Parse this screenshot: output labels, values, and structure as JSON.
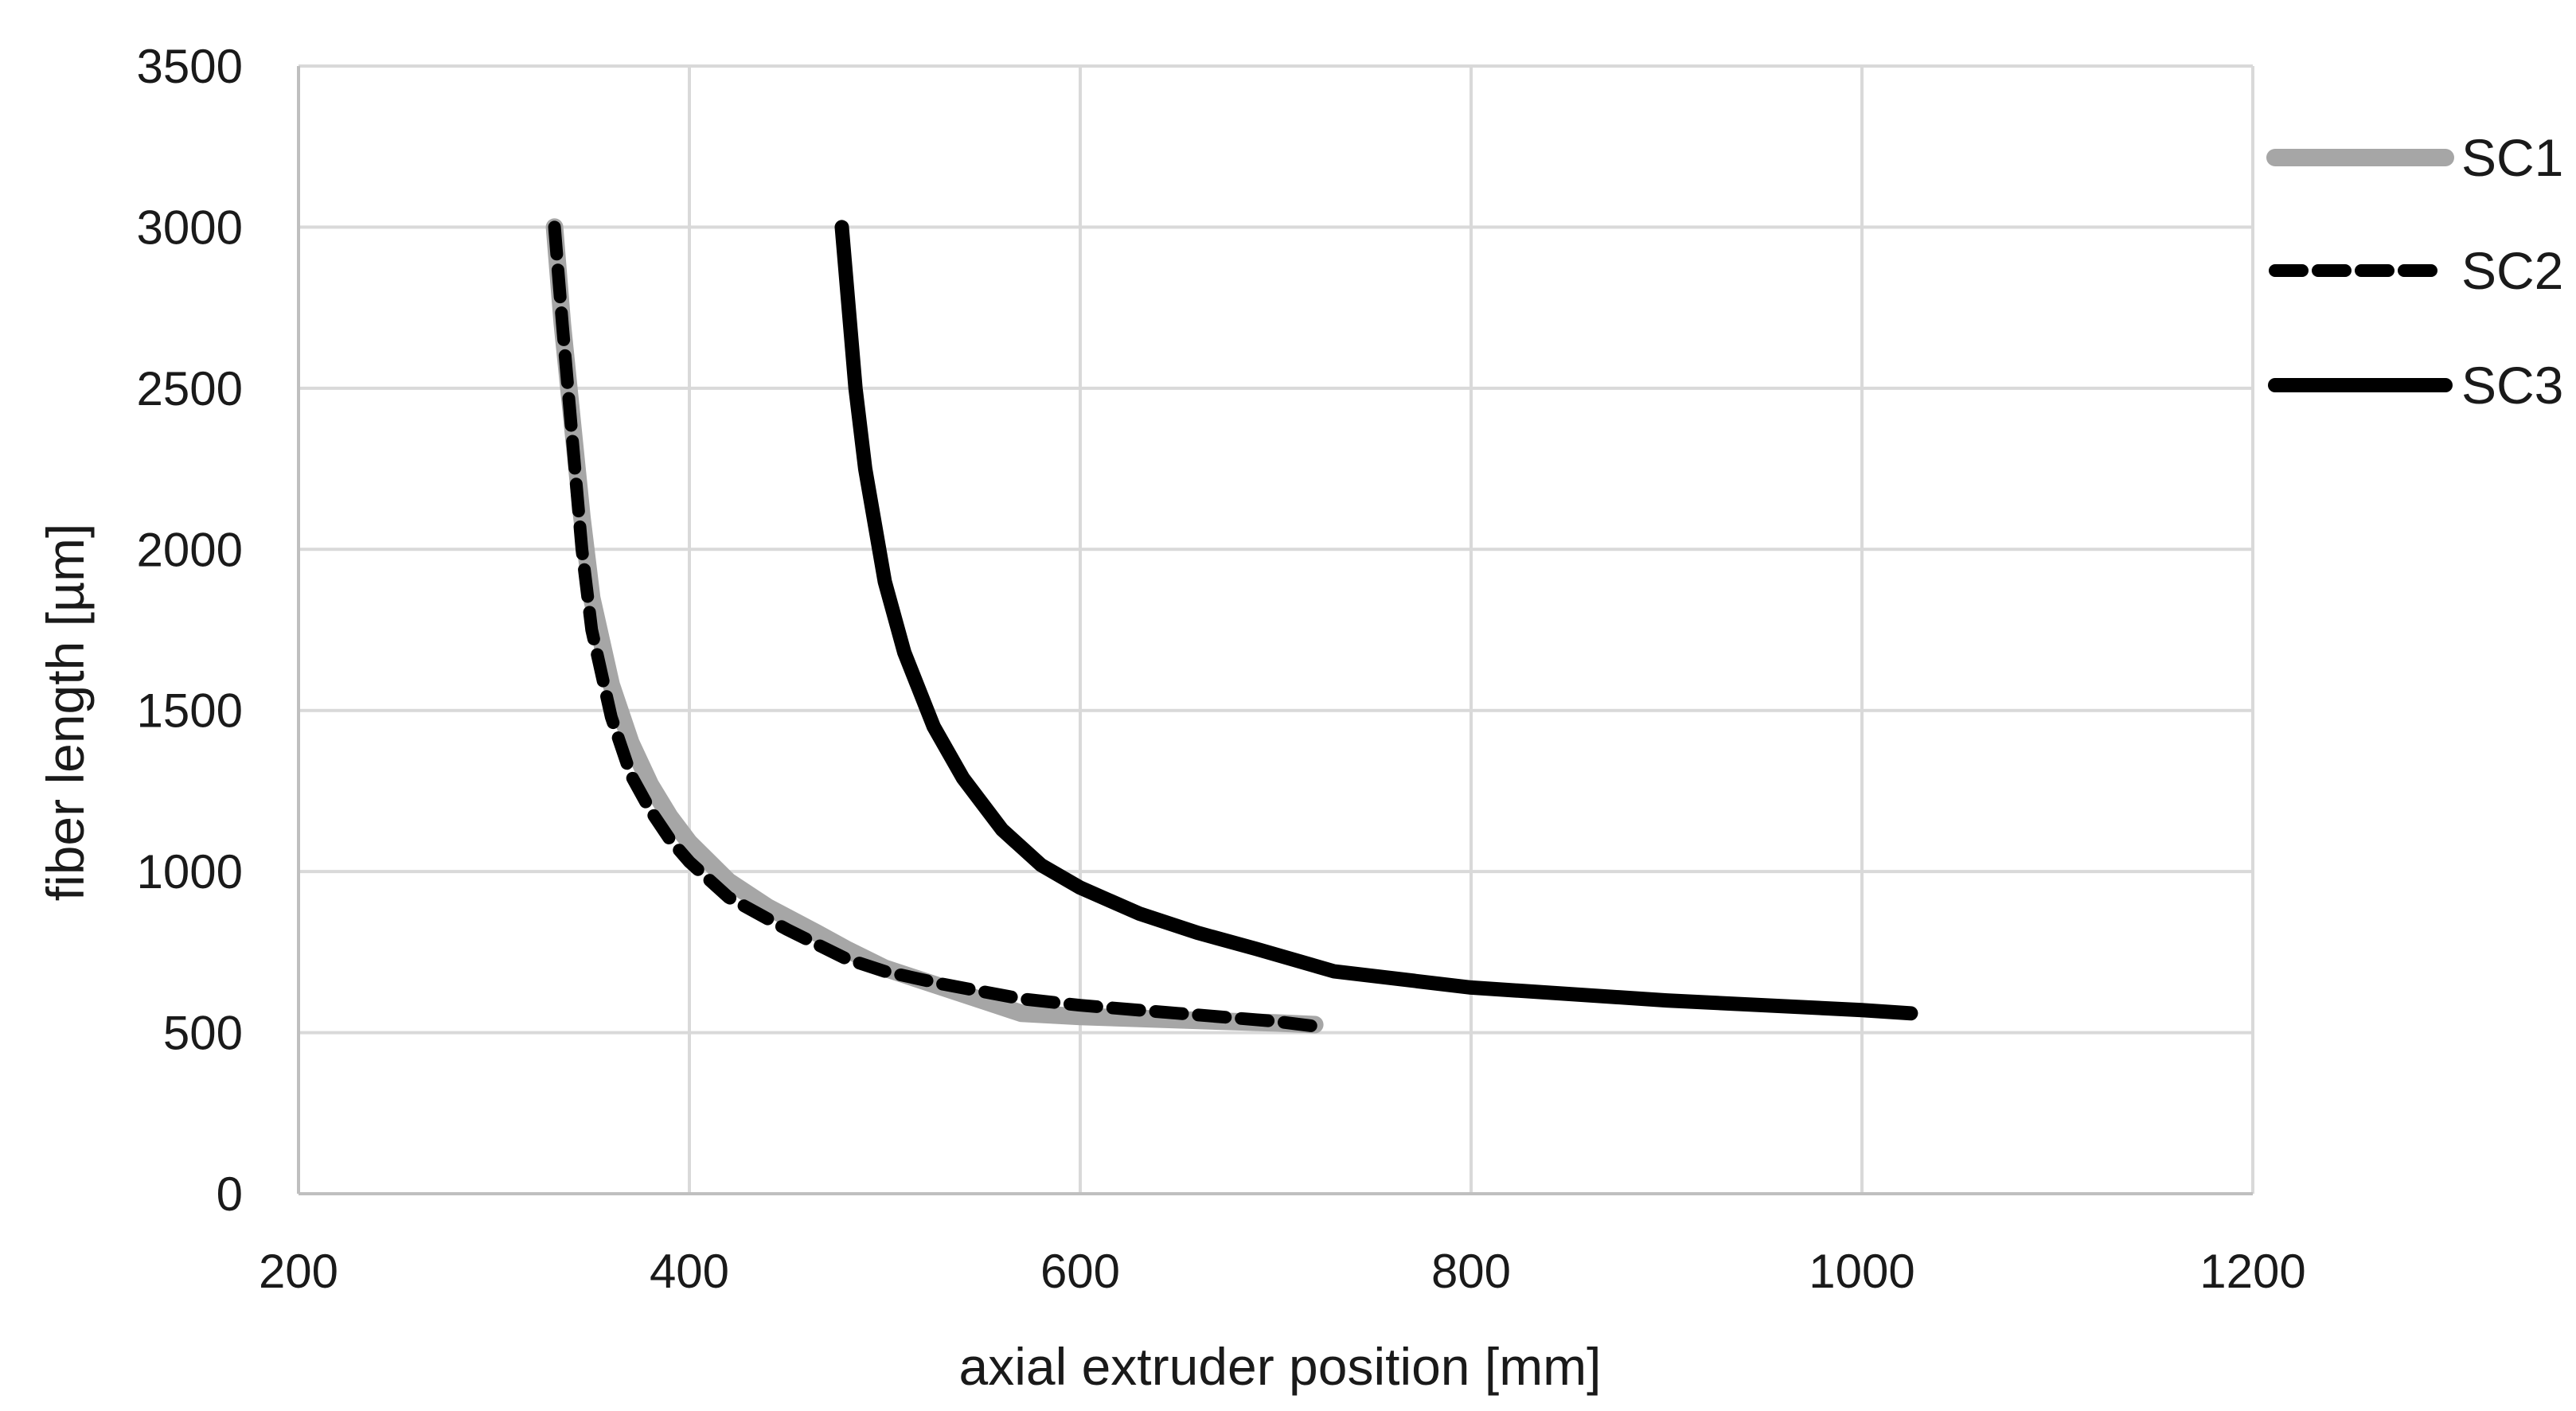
{
  "chart_data": {
    "type": "line",
    "xlabel": "axial extruder position [mm]",
    "ylabel": "fiber length [µm]",
    "xlim": [
      200,
      1200
    ],
    "ylim": [
      0,
      3500
    ],
    "x_ticks": [
      200,
      400,
      600,
      800,
      1000,
      1200
    ],
    "y_ticks": [
      0,
      500,
      1000,
      1500,
      2000,
      2500,
      3000,
      3500
    ],
    "grid": true,
    "legend_position": "right",
    "series": [
      {
        "name": "SC1",
        "color": "#a6a6a6",
        "style": "solid",
        "x": [
          331,
          335,
          340,
          345,
          350,
          360,
          370,
          380,
          390,
          400,
          420,
          440,
          465,
          480,
          500,
          530,
          570,
          600,
          650,
          700,
          720
        ],
        "y": [
          3000,
          2700,
          2400,
          2100,
          1850,
          1580,
          1400,
          1270,
          1170,
          1090,
          970,
          890,
          810,
          760,
          700,
          640,
          560,
          550,
          540,
          530,
          525
        ],
        "points": [
          {
            "x": 331,
            "y": 3000
          },
          {
            "x": 335,
            "y": 2700
          },
          {
            "x": 340,
            "y": 2400
          },
          {
            "x": 345,
            "y": 2100
          },
          {
            "x": 350,
            "y": 1850
          },
          {
            "x": 360,
            "y": 1580
          },
          {
            "x": 370,
            "y": 1400
          },
          {
            "x": 380,
            "y": 1270
          },
          {
            "x": 390,
            "y": 1170
          },
          {
            "x": 400,
            "y": 1090
          },
          {
            "x": 420,
            "y": 970
          },
          {
            "x": 440,
            "y": 890
          },
          {
            "x": 465,
            "y": 810
          },
          {
            "x": 480,
            "y": 760
          },
          {
            "x": 500,
            "y": 700
          },
          {
            "x": 530,
            "y": 640
          },
          {
            "x": 570,
            "y": 560
          },
          {
            "x": 600,
            "y": 550
          },
          {
            "x": 650,
            "y": 540
          },
          {
            "x": 700,
            "y": 530
          },
          {
            "x": 720,
            "y": 525
          }
        ]
      },
      {
        "name": "SC2",
        "color": "#000000",
        "style": "dashed",
        "x": [
          331,
          335,
          340,
          345,
          350,
          360,
          370,
          380,
          390,
          400,
          420,
          450,
          480,
          500,
          530,
          570,
          600,
          650,
          700,
          720
        ],
        "y": [
          3000,
          2700,
          2350,
          2000,
          1750,
          1480,
          1300,
          1190,
          1100,
          1030,
          920,
          820,
          730,
          690,
          650,
          605,
          585,
          560,
          535,
          520
        ],
        "points": [
          {
            "x": 331,
            "y": 3000
          },
          {
            "x": 335,
            "y": 2700
          },
          {
            "x": 340,
            "y": 2350
          },
          {
            "x": 345,
            "y": 2000
          },
          {
            "x": 350,
            "y": 1750
          },
          {
            "x": 360,
            "y": 1480
          },
          {
            "x": 370,
            "y": 1300
          },
          {
            "x": 380,
            "y": 1190
          },
          {
            "x": 390,
            "y": 1100
          },
          {
            "x": 400,
            "y": 1030
          },
          {
            "x": 420,
            "y": 920
          },
          {
            "x": 450,
            "y": 820
          },
          {
            "x": 480,
            "y": 730
          },
          {
            "x": 500,
            "y": 690
          },
          {
            "x": 530,
            "y": 650
          },
          {
            "x": 570,
            "y": 605
          },
          {
            "x": 600,
            "y": 585
          },
          {
            "x": 650,
            "y": 560
          },
          {
            "x": 700,
            "y": 535
          },
          {
            "x": 720,
            "y": 520
          }
        ]
      },
      {
        "name": "SC3",
        "color": "#000000",
        "style": "solid",
        "x": [
          478,
          485,
          490,
          500,
          510,
          525,
          540,
          560,
          580,
          600,
          630,
          660,
          690,
          730,
          800,
          900,
          1000,
          1025
        ],
        "y": [
          3000,
          2500,
          2250,
          1900,
          1680,
          1450,
          1290,
          1130,
          1020,
          950,
          870,
          810,
          760,
          690,
          640,
          600,
          570,
          560
        ],
        "points": [
          {
            "x": 478,
            "y": 3000
          },
          {
            "x": 485,
            "y": 2500
          },
          {
            "x": 490,
            "y": 2250
          },
          {
            "x": 500,
            "y": 1900
          },
          {
            "x": 510,
            "y": 1680
          },
          {
            "x": 525,
            "y": 1450
          },
          {
            "x": 540,
            "y": 1290
          },
          {
            "x": 560,
            "y": 1130
          },
          {
            "x": 580,
            "y": 1020
          },
          {
            "x": 600,
            "y": 950
          },
          {
            "x": 630,
            "y": 870
          },
          {
            "x": 660,
            "y": 810
          },
          {
            "x": 690,
            "y": 760
          },
          {
            "x": 730,
            "y": 690
          },
          {
            "x": 800,
            "y": 640
          },
          {
            "x": 900,
            "y": 600
          },
          {
            "x": 1000,
            "y": 570
          },
          {
            "x": 1025,
            "y": 560
          }
        ]
      }
    ]
  }
}
